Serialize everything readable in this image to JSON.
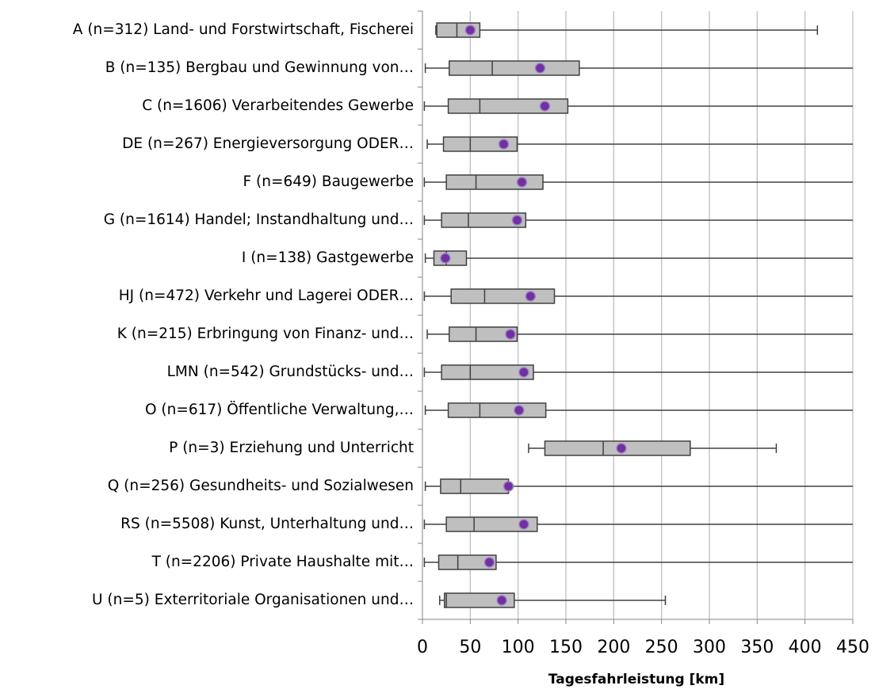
{
  "chart_data": {
    "type": "boxplot",
    "x_label": "Tagesfahrleistung [km]",
    "categories": [
      "A (n=312) Land- und Forstwirtschaft, Fischerei",
      "B (n=135) Bergbau und Gewinnung von…",
      "C (n=1606) Verarbeitendes Gewerbe",
      "DE (n=267) Energieversorgung ODER…",
      "F (n=649) Baugewerbe",
      "G (n=1614) Handel; Instandhaltung und…",
      "I (n=138) Gastgewerbe",
      "HJ (n=472) Verkehr und Lagerei ODER…",
      "K (n=215) Erbringung von Finanz- und…",
      "LMN (n=542) Grundstücks- und…",
      "O (n=617) Öffentliche Verwaltung,…",
      "P (n=3) Erziehung und Unterricht",
      "Q (n=256) Gesundheits- und Sozialwesen",
      "RS (n=5508) Kunst, Unterhaltung und…",
      "T (n=2206) Private Haushalte mit…",
      "U (n=5) Exterritoriale Organisationen und…"
    ],
    "min": [
      14,
      3,
      2,
      5,
      2,
      2,
      3,
      2,
      5,
      2,
      3,
      111,
      3,
      2,
      2,
      18
    ],
    "q1": [
      15,
      28,
      27,
      22,
      25,
      20,
      12,
      30,
      28,
      20,
      27,
      128,
      19,
      25,
      17,
      23
    ],
    "median": [
      36,
      73,
      60,
      50,
      56,
      48,
      25,
      65,
      56,
      50,
      60,
      189,
      40,
      54,
      37,
      25
    ],
    "q3": [
      60,
      164,
      152,
      99,
      126,
      108,
      46,
      138,
      99,
      116,
      129,
      280,
      90,
      120,
      77,
      96
    ],
    "max": [
      413,
      450,
      450,
      450,
      450,
      450,
      450,
      450,
      450,
      450,
      450,
      370,
      450,
      450,
      450,
      254
    ],
    "mean": [
      50,
      123,
      128,
      85,
      104,
      99,
      24,
      113,
      92,
      106,
      101,
      208,
      90,
      106,
      70,
      83
    ],
    "box_color": "#bfbfbf",
    "mean_color": "#7030a0",
    "xlim": [
      0,
      450
    ],
    "xticks": [
      0,
      50,
      100,
      150,
      200,
      250,
      300,
      350,
      400,
      450
    ],
    "grid": true
  }
}
